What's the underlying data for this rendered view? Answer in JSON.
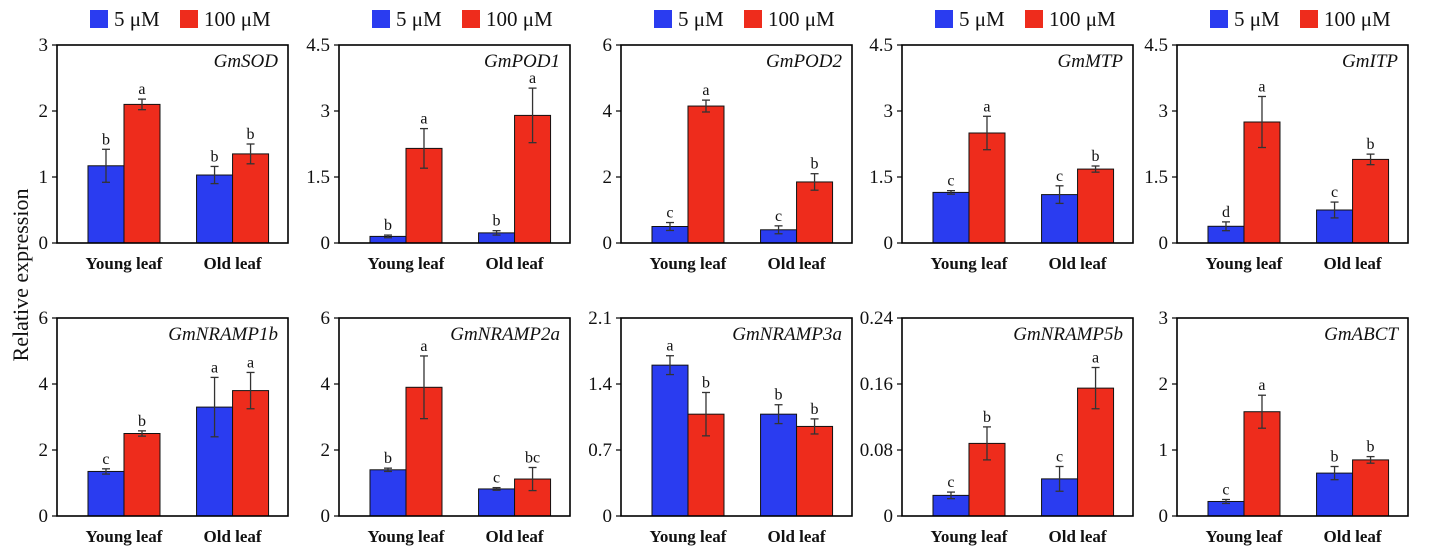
{
  "figure": {
    "ylabel": "Relative expression",
    "legend": [
      {
        "label": "5 μM",
        "color": "#2a3cf0"
      },
      {
        "label": "100 μM",
        "color": "#ee2c1c"
      }
    ]
  },
  "chart_data": [
    {
      "type": "bar",
      "title": "GmSOD",
      "categories": [
        "Young leaf",
        "Old leaf"
      ],
      "ylim": [
        0,
        3
      ],
      "ticks": [
        "0",
        "1",
        "2",
        "3"
      ],
      "series": [
        {
          "name": "5 μM",
          "values": [
            1.17,
            1.03
          ],
          "errors": [
            0.25,
            0.13
          ],
          "labels": [
            "b",
            "b"
          ]
        },
        {
          "name": "100 μM",
          "values": [
            2.1,
            1.35
          ],
          "errors": [
            0.08,
            0.15
          ],
          "labels": [
            "a",
            "b"
          ]
        }
      ]
    },
    {
      "type": "bar",
      "title": "GmPOD1",
      "categories": [
        "Young leaf",
        "Old leaf"
      ],
      "ylim": [
        0,
        4.5
      ],
      "ticks": [
        "0",
        "1.5",
        "3",
        "4.5"
      ],
      "series": [
        {
          "name": "5 μM",
          "values": [
            0.15,
            0.23
          ],
          "errors": [
            0.03,
            0.05
          ],
          "labels": [
            "b",
            "b"
          ]
        },
        {
          "name": "100 μM",
          "values": [
            2.15,
            2.9
          ],
          "errors": [
            0.45,
            0.62
          ],
          "labels": [
            "a",
            "a"
          ]
        }
      ]
    },
    {
      "type": "bar",
      "title": "GmPOD2",
      "categories": [
        "Young leaf",
        "Old leaf"
      ],
      "ylim": [
        0,
        6
      ],
      "ticks": [
        "0",
        "2",
        "4",
        "6"
      ],
      "series": [
        {
          "name": "5 μM",
          "values": [
            0.5,
            0.4
          ],
          "errors": [
            0.12,
            0.12
          ],
          "labels": [
            "c",
            "c"
          ]
        },
        {
          "name": "100 μM",
          "values": [
            4.15,
            1.85
          ],
          "errors": [
            0.18,
            0.25
          ],
          "labels": [
            "a",
            "b"
          ]
        }
      ]
    },
    {
      "type": "bar",
      "title": "GmMTP",
      "categories": [
        "Young leaf",
        "Old leaf"
      ],
      "ylim": [
        0,
        4.5
      ],
      "ticks": [
        "0",
        "1.5",
        "3",
        "4.5"
      ],
      "series": [
        {
          "name": "5 μM",
          "values": [
            1.15,
            1.1
          ],
          "errors": [
            0.04,
            0.2
          ],
          "labels": [
            "c",
            "c"
          ]
        },
        {
          "name": "100 μM",
          "values": [
            2.5,
            1.68
          ],
          "errors": [
            0.38,
            0.07
          ],
          "labels": [
            "a",
            "b"
          ]
        }
      ]
    },
    {
      "type": "bar",
      "title": "GmITP",
      "categories": [
        "Young leaf",
        "Old leaf"
      ],
      "ylim": [
        0,
        4.5
      ],
      "ticks": [
        "0",
        "1.5",
        "3",
        "4.5"
      ],
      "series": [
        {
          "name": "5 μM",
          "values": [
            0.38,
            0.75
          ],
          "errors": [
            0.1,
            0.18
          ],
          "labels": [
            "d",
            "c"
          ]
        },
        {
          "name": "100 μM",
          "values": [
            2.75,
            1.9
          ],
          "errors": [
            0.58,
            0.12
          ],
          "labels": [
            "a",
            "b"
          ]
        }
      ]
    },
    {
      "type": "bar",
      "title": "GmNRAMP1b",
      "categories": [
        "Young leaf",
        "Old leaf"
      ],
      "ylim": [
        0,
        6
      ],
      "ticks": [
        "0",
        "2",
        "4",
        "6"
      ],
      "series": [
        {
          "name": "5 μM",
          "values": [
            1.35,
            3.3
          ],
          "errors": [
            0.08,
            0.9
          ],
          "labels": [
            "c",
            "a"
          ]
        },
        {
          "name": "100 μM",
          "values": [
            2.5,
            3.8
          ],
          "errors": [
            0.08,
            0.55
          ],
          "labels": [
            "b",
            "a"
          ]
        }
      ]
    },
    {
      "type": "bar",
      "title": "GmNRAMP2a",
      "categories": [
        "Young leaf",
        "Old leaf"
      ],
      "ylim": [
        0,
        6
      ],
      "ticks": [
        "0",
        "2",
        "4",
        "6"
      ],
      "series": [
        {
          "name": "5 μM",
          "values": [
            1.4,
            0.82
          ],
          "errors": [
            0.05,
            0.04
          ],
          "labels": [
            "b",
            "c"
          ]
        },
        {
          "name": "100 μM",
          "values": [
            3.9,
            1.12
          ],
          "errors": [
            0.95,
            0.35
          ],
          "labels": [
            "a",
            "bc"
          ]
        }
      ]
    },
    {
      "type": "bar",
      "title": "GmNRAMP3a",
      "categories": [
        "Young leaf",
        "Old leaf"
      ],
      "ylim": [
        0,
        2.1
      ],
      "ticks": [
        "0",
        "0.7",
        "1.4",
        "2.1"
      ],
      "series": [
        {
          "name": "5 μM",
          "values": [
            1.6,
            1.08
          ],
          "errors": [
            0.1,
            0.1
          ],
          "labels": [
            "a",
            "b"
          ]
        },
        {
          "name": "100 μM",
          "values": [
            1.08,
            0.95
          ],
          "errors": [
            0.23,
            0.08
          ],
          "labels": [
            "b",
            "b"
          ]
        }
      ]
    },
    {
      "type": "bar",
      "title": "GmNRAMP5b",
      "categories": [
        "Young leaf",
        "Old leaf"
      ],
      "ylim": [
        0,
        0.24
      ],
      "ticks": [
        "0",
        "0.08",
        "0.16",
        "0.24"
      ],
      "series": [
        {
          "name": "5 μM",
          "values": [
            0.025,
            0.045
          ],
          "errors": [
            0.004,
            0.015
          ],
          "labels": [
            "c",
            "c"
          ]
        },
        {
          "name": "100 μM",
          "values": [
            0.088,
            0.155
          ],
          "errors": [
            0.02,
            0.025
          ],
          "labels": [
            "b",
            "a"
          ]
        }
      ]
    },
    {
      "type": "bar",
      "title": "GmABCT",
      "categories": [
        "Young leaf",
        "Old leaf"
      ],
      "ylim": [
        0,
        3
      ],
      "ticks": [
        "0",
        "1",
        "2",
        "3"
      ],
      "series": [
        {
          "name": "5 μM",
          "values": [
            0.22,
            0.65
          ],
          "errors": [
            0.03,
            0.1
          ],
          "labels": [
            "c",
            "b"
          ]
        },
        {
          "name": "100 μM",
          "values": [
            1.58,
            0.85
          ],
          "errors": [
            0.25,
            0.05
          ],
          "labels": [
            "a",
            "b"
          ]
        }
      ]
    }
  ]
}
